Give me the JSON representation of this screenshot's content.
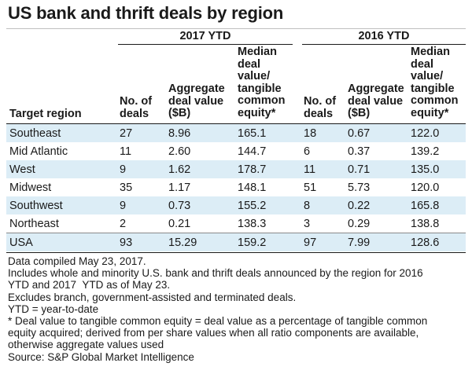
{
  "title": "US bank and thrift deals by region",
  "groups": [
    "2017 YTD",
    "2016 YTD"
  ],
  "columns": {
    "region": "Target region",
    "deals": [
      "No. of",
      "deals"
    ],
    "aggregate": [
      "Aggregate",
      "deal value",
      "($B)"
    ],
    "median": [
      "Median",
      "deal",
      "value/",
      "tangible",
      "common",
      "equity*"
    ]
  },
  "rows": [
    {
      "region": "Southeast",
      "d17": "27",
      "a17": "8.96",
      "m17": "165.1",
      "d16": "18",
      "a16": "0.67",
      "m16": "122.0"
    },
    {
      "region": "Mid Atlantic",
      "d17": "11",
      "a17": "2.60",
      "m17": "144.7",
      "d16": "6",
      "a16": "0.37",
      "m16": "139.2"
    },
    {
      "region": "West",
      "d17": "9",
      "a17": "1.62",
      "m17": "178.7",
      "d16": "11",
      "a16": "0.71",
      "m16": "135.0"
    },
    {
      "region": "Midwest",
      "d17": "35",
      "a17": "1.17",
      "m17": "148.1",
      "d16": "51",
      "a16": "5.73",
      "m16": "120.0"
    },
    {
      "region": "Southwest",
      "d17": "9",
      "a17": "0.73",
      "m17": "155.2",
      "d16": "8",
      "a16": "0.22",
      "m16": "165.8"
    },
    {
      "region": "Northeast",
      "d17": "2",
      "a17": "0.21",
      "m17": "138.3",
      "d16": "3",
      "a16": "0.29",
      "m16": "138.8"
    },
    {
      "region": "USA",
      "d17": "93",
      "a17": "15.29",
      "m17": "159.2",
      "d16": "97",
      "a16": "7.99",
      "m16": "128.6"
    }
  ],
  "notes": [
    "Data compiled May 23, 2017.",
    "Includes whole and minority U.S. bank and thrift deals announced by the region for 2016",
    "YTD and 2017  YTD as of May 23.",
    "Excludes branch, government-assisted and terminated deals.",
    "YTD = year-to-date",
    "* Deal value to tangible common equity = deal value as a percentage of tangible common",
    "equity acquired; derived from per share values when all ratio components are available,",
    "otherwise aggregate values used",
    "Source: S&P Global Market Intelligence"
  ]
}
